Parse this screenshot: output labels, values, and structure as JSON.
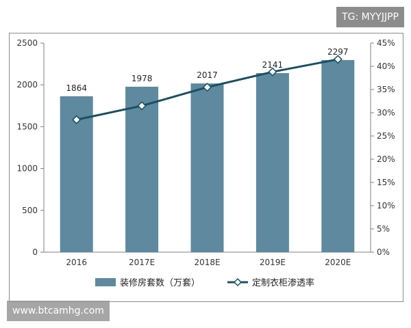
{
  "watermark_top": "TG: MYYJJPP",
  "watermark_bottom": "www.btcamhg.com",
  "colors": {
    "bar": "#5e899e",
    "line": "#1b4f63",
    "marker_fill": "#ffffff",
    "axis": "#7f7f7f",
    "frame": "#8a8a8a"
  },
  "chart_data": {
    "type": "bar",
    "categories": [
      "2016",
      "2017E",
      "2018E",
      "2019E",
      "2020E"
    ],
    "series": [
      {
        "name": "装修房套数（万套）",
        "type": "bar",
        "axis": "left",
        "values": [
          1864,
          1978,
          2017,
          2141,
          2297
        ],
        "data_labels": [
          "1864",
          "1978",
          "2017",
          "2141",
          "2297"
        ]
      },
      {
        "name": "定制衣柜渗透率",
        "type": "line",
        "axis": "right",
        "values": [
          28.5,
          31.5,
          35.5,
          38.8,
          41.5
        ]
      }
    ],
    "y_left": {
      "min": 0,
      "max": 2500,
      "ticks": [
        "0",
        "500",
        "1000",
        "1500",
        "2000",
        "2500"
      ]
    },
    "y_right": {
      "min": 0,
      "max": 45,
      "ticks": [
        "0%",
        "5%",
        "10%",
        "15%",
        "20%",
        "25%",
        "30%",
        "35%",
        "40%",
        "45%"
      ]
    },
    "grid": false,
    "legend_position": "bottom"
  }
}
